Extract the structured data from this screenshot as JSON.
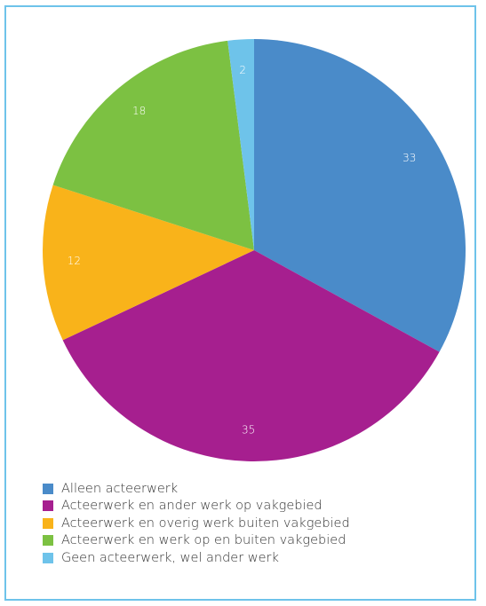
{
  "chart_data": {
    "type": "pie",
    "title": "",
    "categories": [
      "Alleen acteerwerk",
      "Acteerwerk en ander werk op vakgebied",
      "Acteerwerk en overig werk buiten vakgebied",
      "Acteerwerk en werk op en buiten vakgebied",
      "Geen acteerwerk, wel ander werk"
    ],
    "values": [
      33,
      35,
      12,
      18,
      2
    ],
    "colors": [
      "#4a8bc9",
      "#a61f8f",
      "#f9b31a",
      "#7cc142",
      "#6ec3ea"
    ],
    "legend_position": "bottom-left",
    "start_angle": "12 o'clock, clockwise",
    "frame_color": "#6ec3ea"
  }
}
